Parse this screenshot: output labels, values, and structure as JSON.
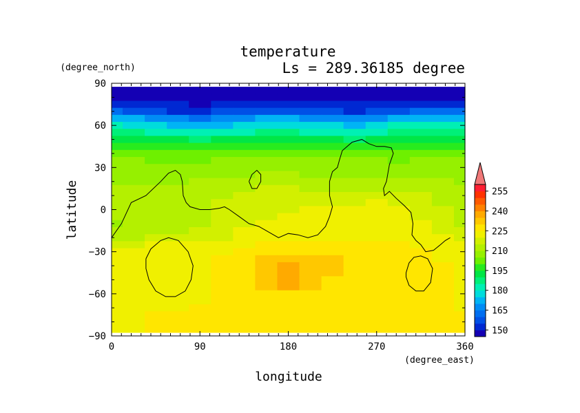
{
  "chart_data": {
    "type": "heatmap",
    "title": "temperature",
    "subtitle": "Ls = 289.36185 degree",
    "xlabel": "longitude",
    "ylabel": "latitude",
    "x_unit": "(degree_east)",
    "y_unit": "(degree_north)",
    "xlim": [
      0,
      360
    ],
    "ylim": [
      -90,
      90
    ],
    "x_ticks": [
      0,
      90,
      180,
      270,
      360
    ],
    "y_ticks": [
      90,
      60,
      30,
      0,
      -30,
      -60,
      -90
    ],
    "y_tick_labels": [
      "90",
      "60",
      "30",
      "0",
      "−30",
      "−60",
      "−90"
    ],
    "grid": false,
    "colorbar": {
      "labels": [
        255,
        240,
        225,
        210,
        195,
        180,
        165,
        150
      ],
      "levels": [
        145,
        150,
        155,
        160,
        165,
        170,
        175,
        180,
        185,
        190,
        195,
        200,
        205,
        210,
        215,
        220,
        225,
        230,
        235,
        240,
        245,
        250,
        255,
        260
      ],
      "colors": [
        "#1400b4",
        "#0028d2",
        "#0050e6",
        "#006ef0",
        "#008cf5",
        "#00b4f5",
        "#00dcdc",
        "#00f0b4",
        "#00f078",
        "#00e646",
        "#28eb1e",
        "#6ef000",
        "#96f000",
        "#b4f000",
        "#d2f000",
        "#f0f000",
        "#ffe600",
        "#ffc800",
        "#ffaa00",
        "#ff8200",
        "#ff5a00",
        "#ff3200",
        "#ff1e32"
      ],
      "extend_color": "#f07878"
    },
    "latitudes": [
      85,
      80,
      75,
      70,
      65,
      60,
      55,
      50,
      45,
      40,
      35,
      30,
      25,
      20,
      15,
      10,
      5,
      0,
      -5,
      -10,
      -15,
      -20,
      -25,
      -30,
      -35,
      -40,
      -45,
      -50,
      -55,
      -60,
      -65,
      -70,
      -75,
      -80,
      -85
    ],
    "longitudes": [
      0,
      22.5,
      45,
      67.5,
      90,
      112.5,
      135,
      157.5,
      180,
      202.5,
      225,
      247.5,
      270,
      292.5,
      315,
      337.5,
      360
    ],
    "values": [
      [
        147,
        147,
        147,
        147,
        147,
        147,
        147,
        147,
        147,
        147,
        147,
        147,
        147,
        147,
        147,
        147,
        147
      ],
      [
        148,
        148,
        148,
        148,
        147,
        148,
        148,
        148,
        148,
        148,
        148,
        148,
        148,
        148,
        148,
        148,
        148
      ],
      [
        150,
        150,
        150,
        150,
        148,
        150,
        150,
        150,
        150,
        150,
        150,
        150,
        150,
        150,
        150,
        150,
        150
      ],
      [
        160,
        158,
        156,
        152,
        150,
        155,
        157,
        158,
        158,
        157,
        155,
        154,
        155,
        158,
        160,
        160,
        160
      ],
      [
        172,
        170,
        168,
        165,
        160,
        165,
        168,
        170,
        170,
        168,
        167,
        166,
        168,
        172,
        174,
        172,
        172
      ],
      [
        180,
        178,
        176,
        174,
        170,
        174,
        176,
        178,
        178,
        176,
        175,
        173,
        175,
        180,
        182,
        180,
        180
      ],
      [
        186,
        185,
        184,
        182,
        180,
        182,
        184,
        185,
        185,
        184,
        183,
        180,
        182,
        185,
        188,
        186,
        186
      ],
      [
        190,
        190,
        190,
        190,
        188,
        190,
        190,
        190,
        190,
        190,
        190,
        188,
        190,
        190,
        192,
        190,
        190
      ],
      [
        196,
        195,
        195,
        196,
        195,
        195,
        196,
        197,
        196,
        196,
        196,
        195,
        196,
        197,
        197,
        196,
        196
      ],
      [
        200,
        200,
        200,
        200,
        200,
        200,
        200,
        201,
        200,
        200,
        200,
        200,
        200,
        200,
        201,
        201,
        200
      ],
      [
        205,
        205,
        204,
        203,
        204,
        205,
        205,
        206,
        205,
        205,
        205,
        205,
        205,
        204,
        205,
        206,
        205
      ],
      [
        207,
        207,
        207,
        206,
        206,
        207,
        207,
        208,
        208,
        207,
        207,
        207,
        207,
        207,
        208,
        208,
        207
      ],
      [
        208,
        208,
        209,
        208,
        209,
        208,
        209,
        210,
        210,
        209,
        209,
        209,
        209,
        209,
        209,
        209,
        208
      ],
      [
        209,
        209,
        209,
        208,
        211,
        212,
        211,
        212,
        212,
        212,
        211,
        210,
        211,
        212,
        211,
        210,
        209
      ],
      [
        210,
        210,
        211,
        210,
        212,
        213,
        214,
        216,
        215,
        214,
        213,
        213,
        213,
        213,
        214,
        212,
        210
      ],
      [
        210,
        211,
        212,
        212,
        213,
        214,
        215,
        217,
        217,
        216,
        216,
        217,
        217,
        216,
        215,
        213,
        211
      ],
      [
        211,
        212,
        213,
        213,
        213,
        215,
        215,
        217,
        218,
        218,
        218,
        219,
        220,
        219,
        217,
        214,
        211
      ],
      [
        211,
        212,
        213,
        212,
        214,
        216,
        216,
        218,
        219,
        220,
        220,
        220,
        221,
        221,
        218,
        215,
        212
      ],
      [
        210,
        211,
        213,
        212,
        214,
        216,
        218,
        219,
        220,
        221,
        222,
        222,
        223,
        222,
        219,
        216,
        213
      ],
      [
        209,
        210,
        212,
        212,
        214,
        216,
        218,
        220,
        220,
        222,
        222,
        223,
        223,
        222,
        220,
        217,
        214
      ],
      [
        211,
        212,
        214,
        214,
        216,
        218,
        220,
        221,
        222,
        223,
        223,
        223,
        223,
        222,
        221,
        218,
        215
      ],
      [
        214,
        214,
        216,
        216,
        218,
        219,
        221,
        223,
        224,
        224,
        224,
        224,
        224,
        223,
        222,
        220,
        218
      ],
      [
        218,
        219,
        220,
        220,
        221,
        222,
        224,
        226,
        226,
        226,
        226,
        226,
        226,
        225,
        224,
        222,
        221
      ],
      [
        220,
        222,
        222,
        222,
        222,
        224,
        227,
        228,
        229,
        228,
        228,
        227,
        227,
        226,
        225,
        224,
        222
      ],
      [
        221,
        222,
        222,
        222,
        223,
        226,
        228,
        232,
        234,
        233,
        232,
        228,
        227,
        227,
        226,
        224,
        222
      ],
      [
        221,
        222,
        222,
        222,
        224,
        227,
        229,
        234,
        235,
        234,
        232,
        229,
        228,
        228,
        227,
        225,
        222
      ],
      [
        221,
        222,
        222,
        222,
        224,
        228,
        229,
        232,
        236,
        233,
        230,
        229,
        229,
        229,
        228,
        226,
        222
      ],
      [
        221,
        222,
        222,
        222,
        223,
        228,
        229,
        234,
        236,
        234,
        229,
        229,
        229,
        229,
        228,
        226,
        222
      ],
      [
        221,
        222,
        222,
        222,
        224,
        228,
        229,
        234,
        236,
        233,
        229,
        229,
        229,
        229,
        228,
        226,
        222
      ],
      [
        221,
        222,
        222,
        223,
        224,
        228,
        229,
        229,
        229,
        229,
        229,
        229,
        229,
        229,
        228,
        226,
        222
      ],
      [
        222,
        222,
        222,
        222,
        224,
        228,
        229,
        229,
        229,
        229,
        229,
        229,
        229,
        229,
        228,
        226,
        222
      ],
      [
        224,
        224,
        224,
        224,
        226,
        228,
        229,
        229,
        229,
        229,
        229,
        229,
        229,
        229,
        228,
        226,
        224
      ],
      [
        223,
        224,
        226,
        226,
        227,
        228,
        229,
        229,
        229,
        229,
        229,
        229,
        228,
        226,
        228,
        227,
        226
      ],
      [
        222,
        223,
        226,
        227,
        228,
        229,
        229,
        229,
        229,
        229,
        229,
        229,
        228,
        225,
        228,
        228,
        227
      ],
      [
        221,
        222,
        226,
        227,
        228,
        229,
        229,
        229,
        229,
        229,
        229,
        229,
        228,
        225,
        228,
        228,
        227
      ]
    ],
    "contours": [
      [
        [
          0,
          -20
        ],
        [
          10,
          -10
        ],
        [
          20,
          5
        ],
        [
          35,
          10
        ],
        [
          50,
          20
        ],
        [
          58,
          26
        ],
        [
          65,
          28
        ],
        [
          70,
          25
        ],
        [
          72,
          20
        ],
        [
          73,
          10
        ],
        [
          76,
          5
        ],
        [
          80,
          2
        ],
        [
          90,
          0
        ],
        [
          100,
          0
        ],
        [
          110,
          1
        ],
        [
          115,
          2
        ],
        [
          120,
          0
        ],
        [
          130,
          -5
        ],
        [
          140,
          -10
        ],
        [
          150,
          -12
        ],
        [
          165,
          -18
        ],
        [
          170,
          -20
        ],
        [
          180,
          -17
        ],
        [
          190,
          -18
        ],
        [
          200,
          -20
        ],
        [
          210,
          -18
        ],
        [
          218,
          -12
        ],
        [
          222,
          -5
        ],
        [
          225,
          2
        ],
        [
          222,
          10
        ],
        [
          222,
          20
        ],
        [
          225,
          27
        ],
        [
          230,
          30
        ],
        [
          232,
          35
        ],
        [
          235,
          42
        ],
        [
          245,
          48
        ],
        [
          255,
          50
        ],
        [
          262,
          47
        ],
        [
          270,
          45
        ],
        [
          278,
          45
        ],
        [
          285,
          44
        ],
        [
          287,
          40
        ],
        [
          283,
          32
        ],
        [
          280,
          20
        ],
        [
          277,
          15
        ],
        [
          278,
          10
        ],
        [
          283,
          13
        ],
        [
          290,
          8
        ],
        [
          298,
          3
        ],
        [
          305,
          -2
        ],
        [
          307,
          -10
        ],
        [
          306,
          -18
        ],
        [
          310,
          -22
        ],
        [
          315,
          -25
        ],
        [
          320,
          -30
        ],
        [
          328,
          -29
        ],
        [
          335,
          -25
        ],
        [
          340,
          -22
        ],
        [
          345,
          -20
        ]
      ],
      [
        [
          140,
          20
        ],
        [
          143,
          25
        ],
        [
          148,
          28
        ],
        [
          152,
          25
        ],
        [
          152,
          20
        ],
        [
          148,
          15
        ],
        [
          143,
          15
        ],
        [
          140,
          20
        ]
      ],
      [
        [
          35,
          -35
        ],
        [
          40,
          -28
        ],
        [
          50,
          -22
        ],
        [
          58,
          -20
        ],
        [
          68,
          -22
        ],
        [
          78,
          -30
        ],
        [
          83,
          -40
        ],
        [
          81,
          -50
        ],
        [
          75,
          -58
        ],
        [
          65,
          -62
        ],
        [
          55,
          -62
        ],
        [
          45,
          -58
        ],
        [
          38,
          -50
        ],
        [
          35,
          -42
        ],
        [
          35,
          -35
        ]
      ],
      [
        [
          300,
          -45
        ],
        [
          303,
          -38
        ],
        [
          308,
          -34
        ],
        [
          315,
          -33
        ],
        [
          322,
          -35
        ],
        [
          327,
          -42
        ],
        [
          325,
          -52
        ],
        [
          318,
          -58
        ],
        [
          310,
          -58
        ],
        [
          303,
          -54
        ],
        [
          300,
          -48
        ],
        [
          300,
          -45
        ]
      ]
    ]
  }
}
